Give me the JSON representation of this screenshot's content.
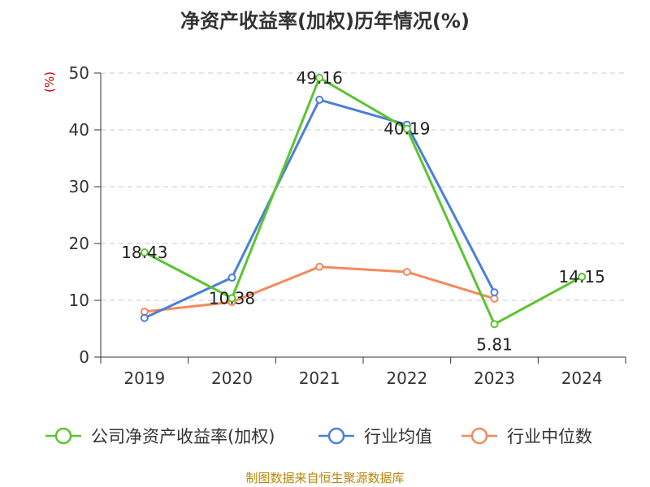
{
  "chart_data": {
    "type": "line",
    "title": "净资产收益率(加权)历年情况(%)",
    "ylabel": "(%)",
    "xlabel": "",
    "ylim": [
      0,
      50
    ],
    "yticks": [
      0,
      10,
      20,
      30,
      40,
      50
    ],
    "categories": [
      "2019",
      "2020",
      "2021",
      "2022",
      "2023",
      "2024"
    ],
    "series": [
      {
        "name": "公司净资产收益率(加权)",
        "color": "#5cc42f",
        "values": [
          18.43,
          10.38,
          49.16,
          40.19,
          5.81,
          14.15
        ],
        "labels": [
          "18.43",
          "10.38",
          "49.16",
          "40.19",
          "5.81",
          "14.15"
        ]
      },
      {
        "name": "行业均值",
        "color": "#4a7fd9",
        "values": [
          6.9,
          14.0,
          45.3,
          40.9,
          11.4,
          null
        ]
      },
      {
        "name": "行业中位数",
        "color": "#f4895b",
        "values": [
          8.0,
          9.7,
          15.9,
          15.0,
          10.3,
          null
        ]
      }
    ],
    "grid": true,
    "legend": "bottom"
  },
  "source": "制图数据来自恒生聚源数据库"
}
